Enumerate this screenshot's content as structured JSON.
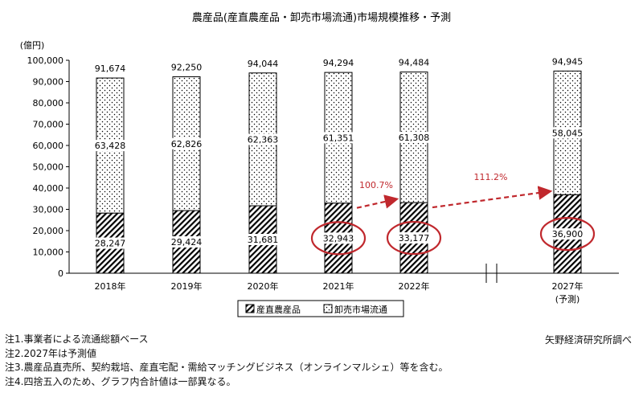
{
  "chart_data": {
    "type": "bar",
    "stacked": true,
    "title": "農産品(産直農産品・卸売市場流通)市場規模推移・予測",
    "ylabel": "(億円)",
    "ylim": [
      0,
      100000
    ],
    "yticks": [
      "0",
      "10,000",
      "20,000",
      "30,000",
      "40,000",
      "50,000",
      "60,000",
      "70,000",
      "80,000",
      "90,000",
      "100,000"
    ],
    "categories": [
      "2018年",
      "2019年",
      "2020年",
      "2021年",
      "2022年",
      "2027年"
    ],
    "category_sub": [
      "",
      "",
      "",
      "",
      "",
      "(予測)"
    ],
    "totals": [
      91674,
      92250,
      94044,
      94294,
      94484,
      94945
    ],
    "totals_text": [
      "91,674",
      "92,250",
      "94,044",
      "94,294",
      "94,484",
      "94,945"
    ],
    "series": [
      {
        "name": "産直農産品",
        "pattern": "diagonal-hatch",
        "values": [
          28247,
          29424,
          31681,
          32943,
          33177,
          36900
        ],
        "labels": [
          "28,247",
          "29,424",
          "31,681",
          "32,943",
          "33,177",
          "36,900"
        ]
      },
      {
        "name": "卸売市場流通",
        "pattern": "dots",
        "values": [
          63428,
          62826,
          62363,
          61351,
          61308,
          58045
        ],
        "labels": [
          "63,428",
          "62,826",
          "62,363",
          "61,351",
          "61,308",
          "58,045"
        ]
      }
    ],
    "circled_labels": [
      3,
      4,
      5
    ],
    "growth_annotations": [
      {
        "text": "100.7%",
        "from": 3,
        "to": 4
      },
      {
        "text": "111.2%",
        "from": 4,
        "to": 5
      }
    ],
    "axis_break_marker": "//",
    "legend_position": "bottom",
    "colors": {
      "annotation": "#c0282d",
      "circle": "#c0282d",
      "bar_outline": "#000000"
    }
  },
  "notes": [
    "注1.事業者による流通総額ベース",
    "注2.2027年は予測値",
    "注3.農産品直売所、契約栽培、産直宅配・需給マッチングビジネス（オンラインマルシェ）等を含む。",
    "注4.四捨五入のため、グラフ内合計値は一部異なる。"
  ],
  "source": "矢野経済研究所調べ"
}
